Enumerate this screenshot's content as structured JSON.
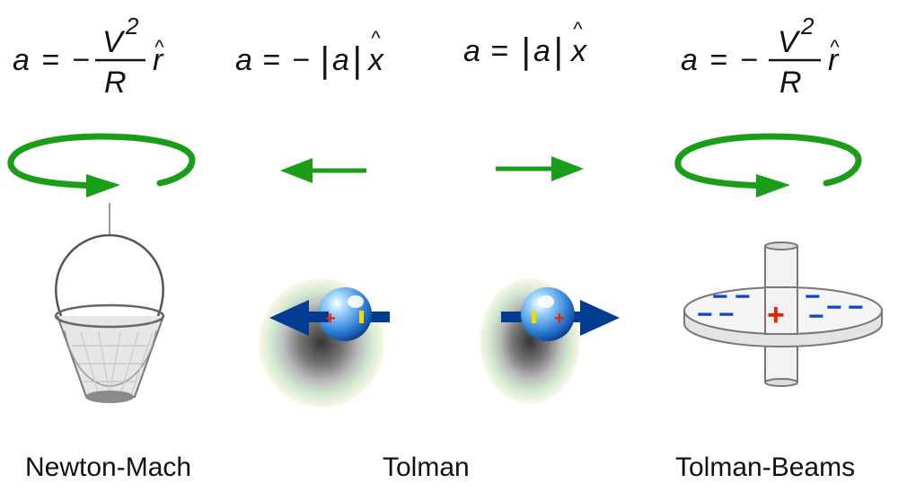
{
  "equations": {
    "newton_mach": {
      "lhs": "a",
      "eq": "=",
      "sign": "−",
      "numerator": "V",
      "exponent": "2",
      "denominator": "R",
      "unit_vector": "r",
      "hat": "^"
    },
    "tolman_left": {
      "lhs": "a",
      "eq": "=",
      "sign": "−",
      "abs_open": "|",
      "magnitude": "a",
      "abs_close": "|",
      "unit_vector": "x",
      "hat": "^"
    },
    "tolman_right": {
      "lhs": "a",
      "eq": "=",
      "abs_open": "|",
      "magnitude": "a",
      "abs_close": "|",
      "unit_vector": "x",
      "hat": "^"
    },
    "tolman_beams": {
      "lhs": "a",
      "eq": "=",
      "sign": "−",
      "numerator": "V",
      "exponent": "2",
      "denominator": "R",
      "unit_vector": "r",
      "hat": "^"
    }
  },
  "captions": {
    "newton_mach": "Newton-Mach",
    "tolman": "Tolman",
    "tolman_beams": "Tolman-Beams"
  },
  "charges": {
    "plus": "+",
    "minus": "−"
  },
  "colors": {
    "rotation_arrow": "#1a9e1a",
    "motion_arrow": "#003c8f",
    "positive_charge": "#ee2200",
    "negative_charge": "#1144cc",
    "electron_marker": "#eedd00"
  }
}
